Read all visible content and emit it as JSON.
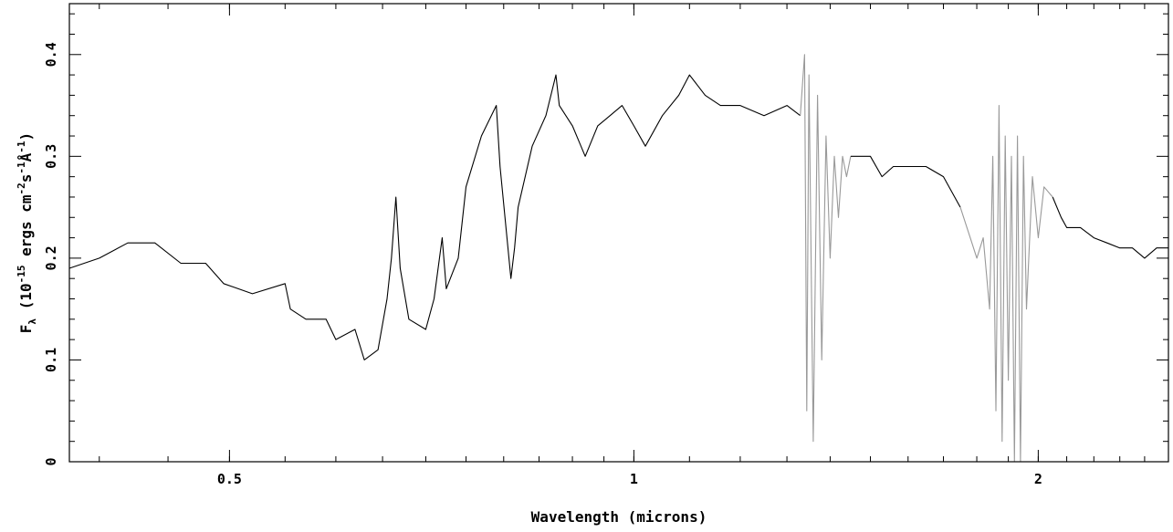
{
  "chart_data": {
    "type": "line",
    "title": "",
    "xlabel": "Wavelength (microns)",
    "ylabel_main": "F",
    "ylabel_sub": "λ",
    "ylabel_rest": " (10",
    "ylabel_exp1": "-15",
    "ylabel_mid": " ergs cm",
    "ylabel_exp2": "-2",
    "ylabel_s": "s",
    "ylabel_exp3": "-1",
    "ylabel_A": "Å",
    "ylabel_exp4": "-1",
    "ylabel_close": ")",
    "xscale": "log",
    "xlim": [
      0.38,
      2.5
    ],
    "ylim": [
      0,
      0.45
    ],
    "x_ticks": [
      {
        "value": 0.5,
        "label": "0.5"
      },
      {
        "value": 1,
        "label": "1"
      },
      {
        "value": 2,
        "label": "2"
      }
    ],
    "y_ticks": [
      {
        "value": 0,
        "label": "0"
      },
      {
        "value": 0.1,
        "label": "0.1"
      },
      {
        "value": 0.2,
        "label": "0.2"
      },
      {
        "value": 0.3,
        "label": "0.3"
      },
      {
        "value": 0.4,
        "label": "0.4"
      }
    ],
    "grid": false,
    "legend": "none",
    "colors": {
      "main": "#000000",
      "telluric": "#999999"
    },
    "series": [
      {
        "color": "main",
        "points": [
          [
            0.38,
            0.19
          ],
          [
            0.4,
            0.2
          ],
          [
            0.42,
            0.215
          ],
          [
            0.44,
            0.215
          ],
          [
            0.46,
            0.195
          ],
          [
            0.48,
            0.195
          ],
          [
            0.495,
            0.175
          ],
          [
            0.52,
            0.165
          ],
          [
            0.55,
            0.175
          ],
          [
            0.555,
            0.15
          ],
          [
            0.57,
            0.14
          ],
          [
            0.59,
            0.14
          ],
          [
            0.6,
            0.12
          ],
          [
            0.62,
            0.13
          ],
          [
            0.63,
            0.1
          ],
          [
            0.645,
            0.11
          ],
          [
            0.655,
            0.16
          ],
          [
            0.66,
            0.2
          ],
          [
            0.665,
            0.26
          ],
          [
            0.67,
            0.19
          ],
          [
            0.68,
            0.14
          ],
          [
            0.7,
            0.13
          ],
          [
            0.71,
            0.16
          ],
          [
            0.72,
            0.22
          ],
          [
            0.725,
            0.17
          ],
          [
            0.74,
            0.2
          ],
          [
            0.75,
            0.27
          ],
          [
            0.77,
            0.32
          ],
          [
            0.79,
            0.35
          ],
          [
            0.795,
            0.29
          ],
          [
            0.81,
            0.18
          ],
          [
            0.815,
            0.21
          ],
          [
            0.82,
            0.25
          ],
          [
            0.84,
            0.31
          ],
          [
            0.86,
            0.34
          ],
          [
            0.875,
            0.38
          ],
          [
            0.88,
            0.35
          ],
          [
            0.9,
            0.33
          ],
          [
            0.92,
            0.3
          ],
          [
            0.94,
            0.33
          ],
          [
            0.96,
            0.34
          ],
          [
            0.98,
            0.35
          ],
          [
            1.0,
            0.33
          ],
          [
            1.02,
            0.31
          ],
          [
            1.05,
            0.34
          ],
          [
            1.08,
            0.36
          ],
          [
            1.1,
            0.38
          ],
          [
            1.13,
            0.36
          ],
          [
            1.16,
            0.35
          ],
          [
            1.2,
            0.35
          ],
          [
            1.25,
            0.34
          ],
          [
            1.3,
            0.35
          ],
          [
            1.33,
            0.34
          ]
        ]
      },
      {
        "color": "telluric",
        "points": [
          [
            1.33,
            0.34
          ],
          [
            1.34,
            0.4
          ],
          [
            1.345,
            0.05
          ],
          [
            1.35,
            0.38
          ],
          [
            1.36,
            0.02
          ],
          [
            1.37,
            0.36
          ],
          [
            1.38,
            0.1
          ],
          [
            1.39,
            0.32
          ],
          [
            1.4,
            0.2
          ],
          [
            1.41,
            0.3
          ],
          [
            1.42,
            0.24
          ],
          [
            1.43,
            0.3
          ],
          [
            1.44,
            0.28
          ],
          [
            1.45,
            0.3
          ]
        ]
      },
      {
        "color": "main",
        "points": [
          [
            1.45,
            0.3
          ],
          [
            1.48,
            0.3
          ],
          [
            1.5,
            0.3
          ],
          [
            1.53,
            0.28
          ],
          [
            1.56,
            0.29
          ],
          [
            1.6,
            0.29
          ],
          [
            1.65,
            0.29
          ],
          [
            1.7,
            0.28
          ],
          [
            1.75,
            0.25
          ]
        ]
      },
      {
        "color": "telluric",
        "points": [
          [
            1.75,
            0.25
          ],
          [
            1.78,
            0.22
          ],
          [
            1.8,
            0.2
          ],
          [
            1.82,
            0.22
          ],
          [
            1.84,
            0.15
          ],
          [
            1.85,
            0.3
          ],
          [
            1.86,
            0.05
          ],
          [
            1.87,
            0.35
          ],
          [
            1.88,
            0.02
          ],
          [
            1.89,
            0.32
          ],
          [
            1.9,
            0.08
          ],
          [
            1.91,
            0.3
          ],
          [
            1.92,
            0.0
          ],
          [
            1.93,
            0.32
          ],
          [
            1.94,
            0.0
          ],
          [
            1.95,
            0.3
          ],
          [
            1.96,
            0.15
          ],
          [
            1.98,
            0.28
          ],
          [
            2.0,
            0.22
          ],
          [
            2.02,
            0.27
          ],
          [
            2.05,
            0.26
          ]
        ]
      },
      {
        "color": "main",
        "points": [
          [
            2.05,
            0.26
          ],
          [
            2.08,
            0.24
          ],
          [
            2.1,
            0.23
          ],
          [
            2.15,
            0.23
          ],
          [
            2.2,
            0.22
          ],
          [
            2.25,
            0.215
          ],
          [
            2.3,
            0.21
          ],
          [
            2.35,
            0.21
          ],
          [
            2.4,
            0.2
          ],
          [
            2.45,
            0.21
          ],
          [
            2.5,
            0.21
          ]
        ]
      }
    ]
  }
}
